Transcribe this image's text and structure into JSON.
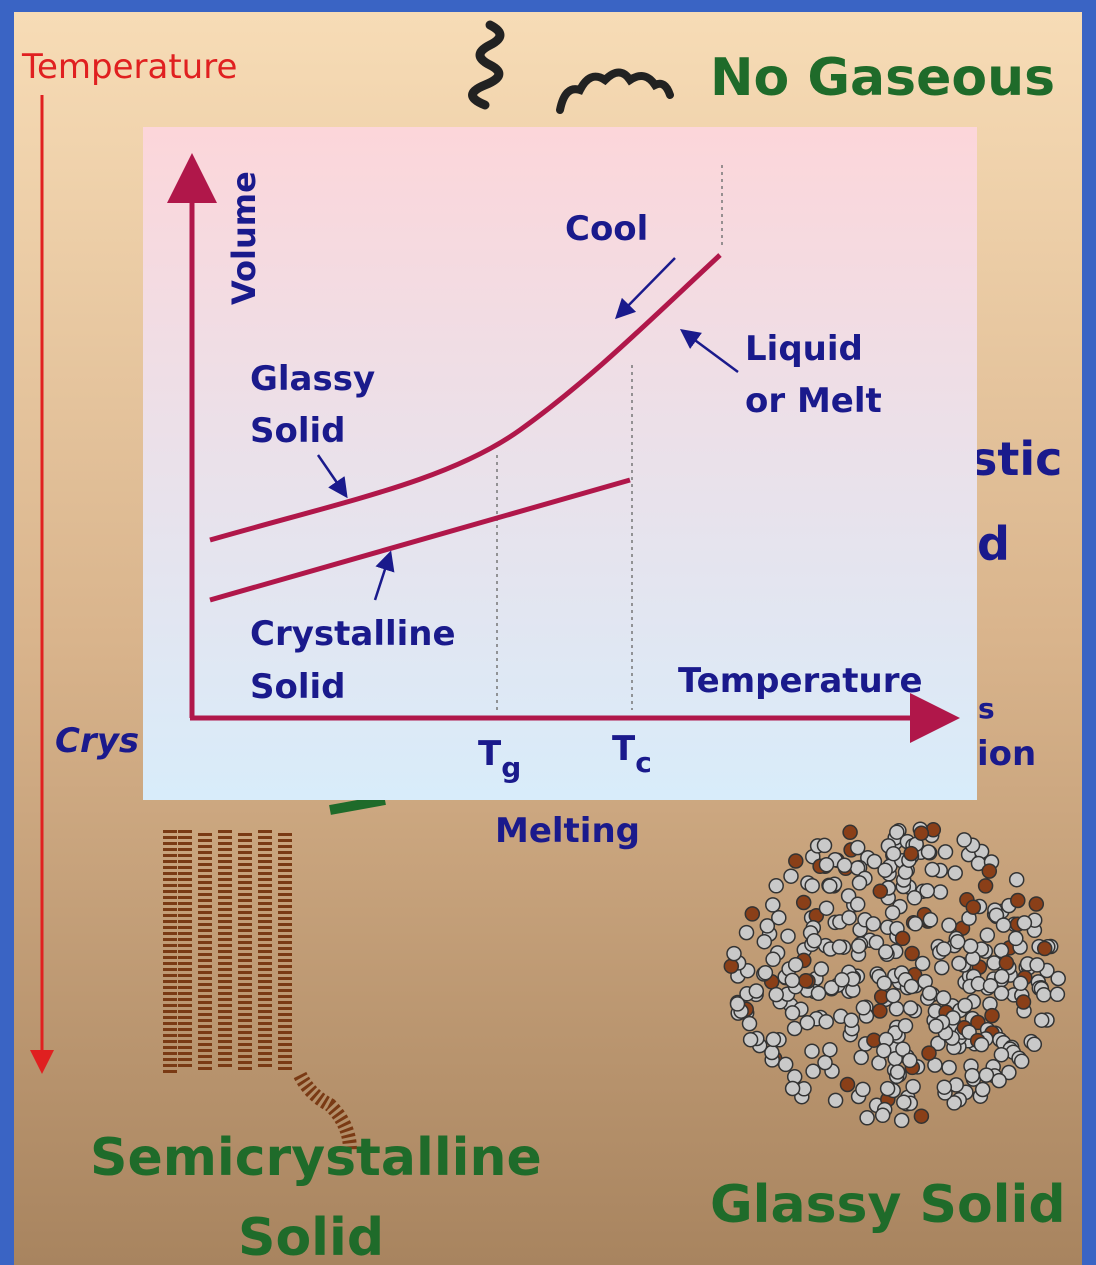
{
  "slide": {
    "temperature_label": "Temperature",
    "top_label": "No Gaseous",
    "right_fragment_upper": "stic",
    "right_fragment_middle": "d",
    "left_fragment": "Crys",
    "right_fragment_lower_1": "s",
    "right_fragment_lower_2": "ion",
    "melting_label": "Melting",
    "semicrystalline_label": [
      "Semicrystalline",
      "Solid"
    ],
    "glassy_solid_label": "Glassy Solid"
  },
  "inset": {
    "y_axis_label": "Volume",
    "x_axis_label": "Temperature",
    "cool_label": "Cool",
    "liquid_label": [
      "Liquid",
      "or Melt"
    ],
    "glassy_label": [
      "Glassy",
      "Solid"
    ],
    "crystalline_label": [
      "Crystalline",
      "Solid"
    ],
    "tg": {
      "base": "T",
      "sub": "g"
    },
    "tc": {
      "base": "T",
      "sub": "c"
    }
  }
}
